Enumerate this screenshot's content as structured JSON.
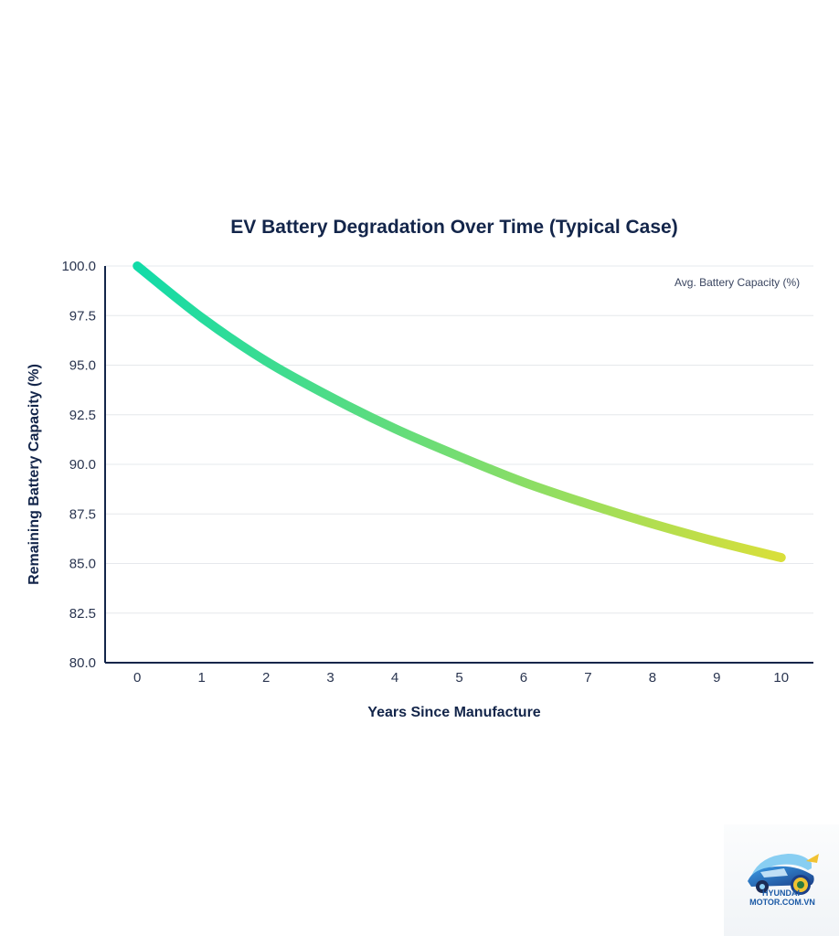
{
  "chart_data": {
    "type": "line",
    "title": "EV Battery Degradation Over Time (Typical Case)",
    "xlabel": "Years Since Manufacture",
    "ylabel": "Remaining Battery Capacity (%)",
    "x": [
      0,
      1,
      2,
      3,
      4,
      5,
      6,
      7,
      8,
      9,
      10
    ],
    "xlim": [
      -0.5,
      10.5
    ],
    "ylim": [
      80,
      100
    ],
    "yticks": [
      "80.0",
      "82.5",
      "85.0",
      "87.5",
      "90.0",
      "92.5",
      "95.0",
      "97.5",
      "100.0"
    ],
    "xticks": [
      "0",
      "1",
      "2",
      "3",
      "4",
      "5",
      "6",
      "7",
      "8",
      "9",
      "10"
    ],
    "grid": true,
    "legend_position": "top-right",
    "series": [
      {
        "name": "Avg. Battery Capacity (%)",
        "values": [
          100.0,
          97.4,
          95.2,
          93.4,
          91.8,
          90.4,
          89.1,
          88.0,
          87.0,
          86.1,
          85.3
        ],
        "color_start": "#12dba8",
        "color_end": "#d9df3a"
      }
    ]
  },
  "watermark": {
    "text": "HYUNDAI-MOTOR.COM.VN",
    "icon": "car-logo-icon"
  }
}
